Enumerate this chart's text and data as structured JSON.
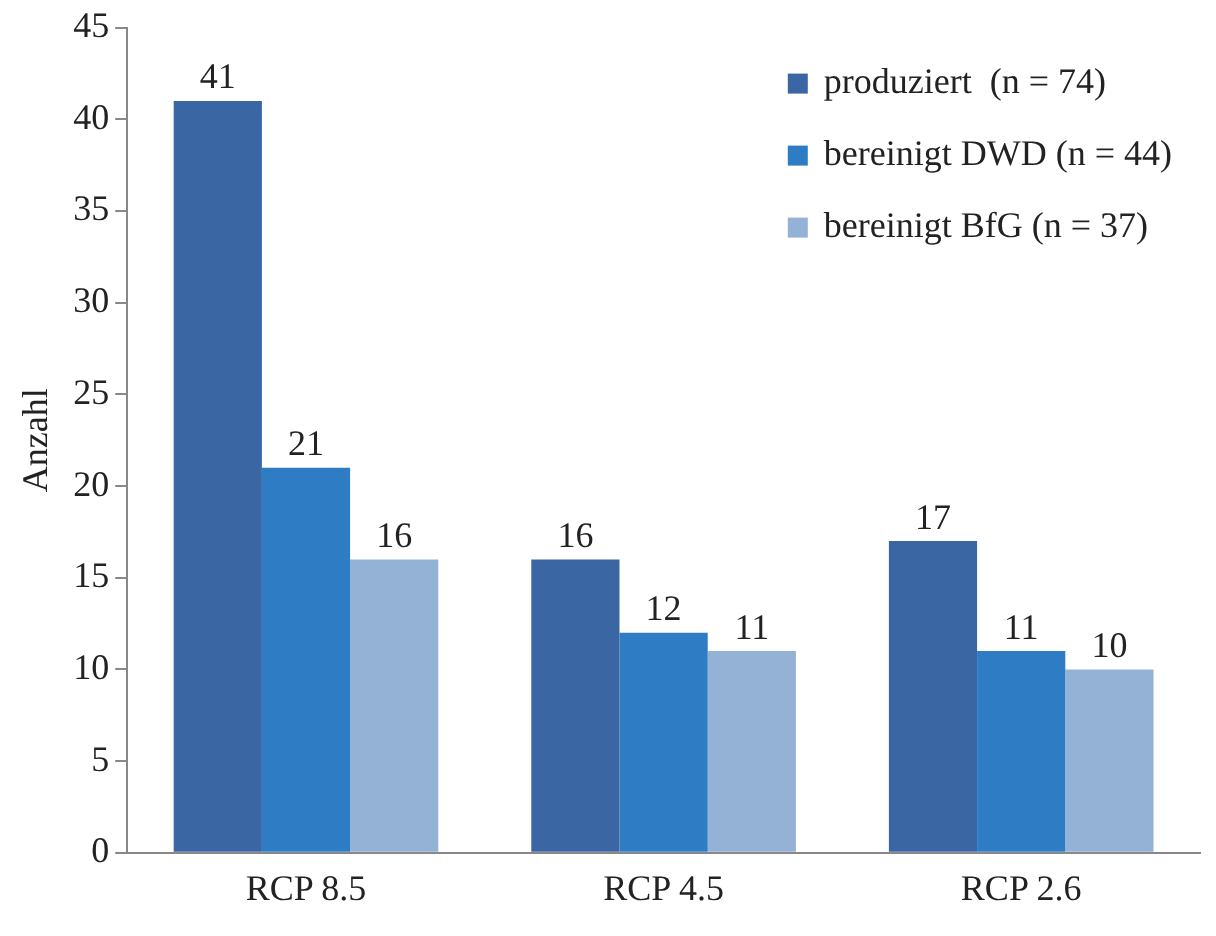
{
  "chart_data": {
    "type": "bar",
    "ylabel": "Anzahl",
    "categories": [
      "RCP 8.5",
      "RCP 4.5",
      "RCP 2.6"
    ],
    "series": [
      {
        "name": "produziert  (n = 74)",
        "color": "#3a66a3",
        "values": [
          41,
          16,
          17
        ]
      },
      {
        "name": "bereinigt DWD (n = 44)",
        "color": "#2e7dc4",
        "values": [
          21,
          12,
          11
        ]
      },
      {
        "name": "bereinigt BfG (n = 37)",
        "color": "#94b1d6",
        "values": [
          16,
          11,
          10
        ]
      }
    ],
    "ylim": [
      0,
      45
    ],
    "yticks": [
      0,
      5,
      10,
      15,
      20,
      25,
      30,
      35,
      40,
      45
    ],
    "grid": false,
    "legend": "top right",
    "data_labels": true
  }
}
